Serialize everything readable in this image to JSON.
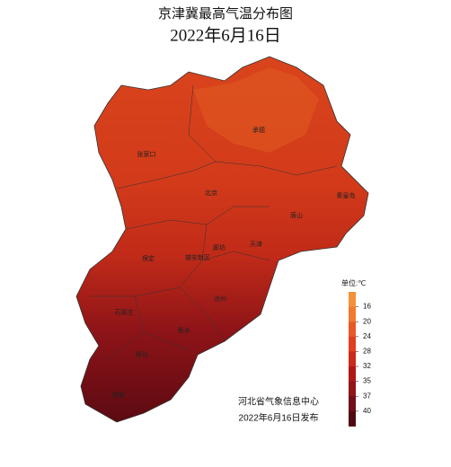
{
  "header": {
    "title": "京津冀最高气温分布图",
    "date": "2022年6月16日"
  },
  "cities": [
    "承德",
    "张家口",
    "秦皇岛",
    "北京",
    "唐山",
    "天津",
    "廊坊",
    "雄安新区",
    "保定",
    "沧州",
    "石家庄",
    "衡水",
    "邢台",
    "邯郸"
  ],
  "legend": {
    "title": "单位:℃",
    "ticks": [
      16,
      20,
      24,
      28,
      32,
      35,
      37,
      40
    ]
  },
  "footer": {
    "issuer": "河北省气象信息中心",
    "released": "2022年6月16日发布"
  }
}
